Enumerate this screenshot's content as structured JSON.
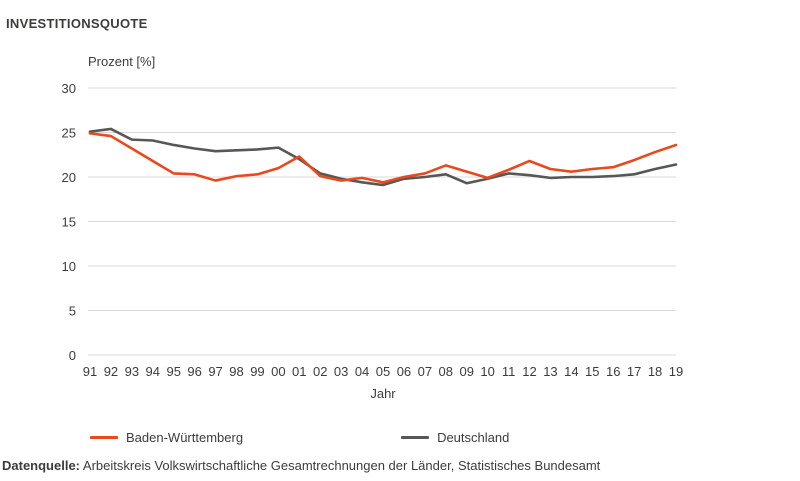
{
  "page": {
    "background": "#ffffff"
  },
  "chart_data": {
    "type": "line",
    "title": "INVESTITIONSQUOTE",
    "ylabel": "Prozent [%]",
    "xlabel": "Jahr",
    "ylim": [
      0,
      30
    ],
    "yticks": [
      0,
      5,
      10,
      15,
      20,
      25,
      30
    ],
    "grid": true,
    "legend_position": "bottom",
    "categories": [
      "91",
      "92",
      "93",
      "94",
      "95",
      "96",
      "97",
      "98",
      "99",
      "00",
      "01",
      "02",
      "03",
      "04",
      "05",
      "06",
      "07",
      "08",
      "09",
      "10",
      "11",
      "12",
      "13",
      "14",
      "15",
      "16",
      "17",
      "18",
      "19"
    ],
    "series": [
      {
        "name": "Baden-Württemberg",
        "color": "#e8491d",
        "values": [
          24.9,
          24.6,
          23.2,
          21.8,
          20.4,
          20.3,
          19.6,
          20.1,
          20.3,
          21.0,
          22.3,
          20.1,
          19.6,
          19.9,
          19.4,
          20.0,
          20.4,
          21.3,
          20.6,
          19.9,
          20.8,
          21.8,
          20.9,
          20.6,
          20.9,
          21.1,
          21.9,
          22.8,
          23.6
        ]
      },
      {
        "name": "Deutschland",
        "color": "#575756",
        "values": [
          25.1,
          25.4,
          24.2,
          24.1,
          23.6,
          23.2,
          22.9,
          23.0,
          23.1,
          23.3,
          22.0,
          20.4,
          19.8,
          19.4,
          19.1,
          19.8,
          20.0,
          20.3,
          19.3,
          19.8,
          20.4,
          20.2,
          19.9,
          20.0,
          20.0,
          20.1,
          20.3,
          20.9,
          21.4
        ]
      }
    ],
    "colors": {
      "grid": "#d9d9d9",
      "text": "#3c3c3b"
    }
  },
  "footer": {
    "label": "Datenquelle:",
    "text": "Arbeitskreis Volkswirtschaftliche Gesamtrechnungen der Länder, Statistisches Bundesamt"
  }
}
